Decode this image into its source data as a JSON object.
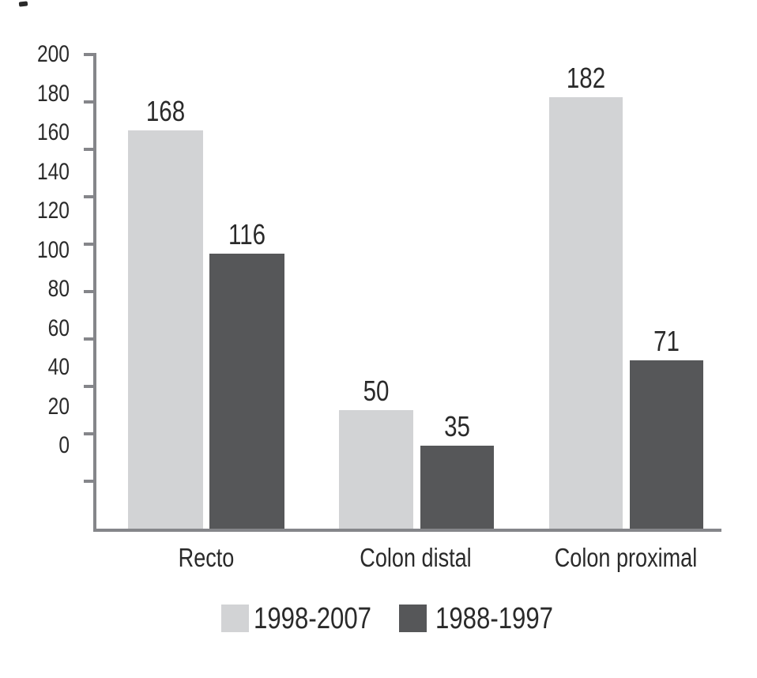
{
  "chart_data": {
    "type": "bar",
    "title": "",
    "xlabel": "",
    "ylabel": "",
    "categories": [
      "Recto",
      "Colon distal",
      "Colon proximal"
    ],
    "series": [
      {
        "name": "1998-2007",
        "values": [
          168,
          50,
          182
        ],
        "color": "#d2d3d5"
      },
      {
        "name": "1988-1997",
        "values": [
          116,
          35,
          71
        ],
        "color": "#565759"
      }
    ],
    "bar_value_labels": [
      {
        "category": "Recto",
        "labels": [
          "168",
          "116"
        ]
      },
      {
        "category": "Colon distal",
        "labels": [
          "50",
          "35"
        ]
      },
      {
        "category": "Colon proximal",
        "labels": [
          "182",
          "71"
        ]
      }
    ],
    "ylim": [
      0,
      200
    ],
    "ytick_step": 20,
    "ytick_labels": [
      "200",
      "180",
      "160",
      "140",
      "120",
      "100",
      "80",
      "60",
      "40",
      "20",
      "0"
    ],
    "grid": false,
    "legend_position": "bottom",
    "legend_entries": [
      "1998-2007",
      "1988-1997"
    ],
    "colors": {
      "axis": "#85868a",
      "text": "#2a2a2a",
      "background": "#ffffff",
      "series_light": "#d2d3d5",
      "series_dark": "#565759"
    },
    "decorations": {
      "scan_artifact_mark": true
    }
  }
}
